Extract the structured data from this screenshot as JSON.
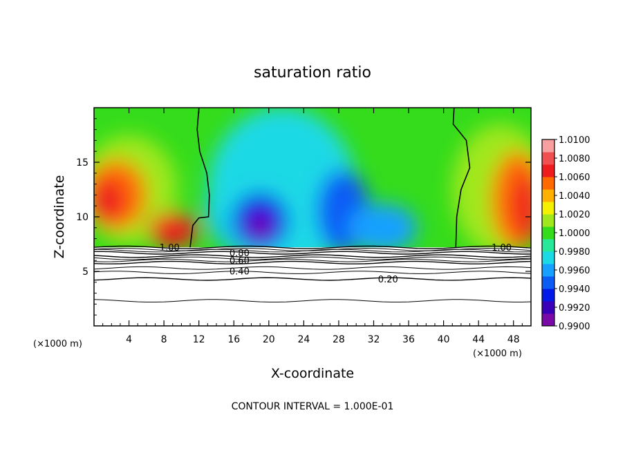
{
  "chart_data": {
    "type": "heatmap",
    "title": "saturation ratio",
    "xlabel": "X-coordinate",
    "ylabel": "Z-coordinate",
    "x_unit_label": "(×1000 m)",
    "y_unit_label": "(×1000 m)",
    "xlim": [
      0,
      50
    ],
    "ylim": [
      0,
      20
    ],
    "x_ticks": [
      4,
      8,
      12,
      16,
      20,
      24,
      28,
      32,
      36,
      40,
      44,
      48
    ],
    "y_ticks": [
      5,
      10,
      15
    ],
    "footer_note": "CONTOUR INTERVAL = 1.000E-01",
    "colorbar": {
      "min": 0.99,
      "max": 1.01,
      "labels": [
        "1.0100",
        "1.0080",
        "1.0060",
        "1.0040",
        "1.0020",
        "1.0000",
        "0.9980",
        "0.9960",
        "0.9940",
        "0.9920",
        "0.9900"
      ],
      "colors": [
        "#7a0aa8",
        "#3a00b8",
        "#0018e8",
        "#0a5cf5",
        "#16a0ff",
        "#1cd9e6",
        "#28e89a",
        "#35dc1c",
        "#a0e81c",
        "#f4f000",
        "#ffb000",
        "#ff6a00",
        "#ee1c1c",
        "#f05050",
        "#f8a0a0"
      ]
    },
    "contours": [
      {
        "label": "1.00",
        "z": 7.2
      },
      {
        "label": "0.80",
        "z": 6.7
      },
      {
        "label": "0.60",
        "z": 6.4
      },
      {
        "label": "0.40",
        "z": 5.8
      },
      {
        "label": "0.20",
        "z": 4.3
      }
    ],
    "contour_label_x": [
      7.5,
      15.5,
      15.5,
      15.5,
      32.5
    ],
    "extra_contour_label": {
      "label": "1.00",
      "x": 45.5,
      "z": 7.2
    },
    "boundary_lines": [
      {
        "name": "left",
        "points": [
          [
            12.0,
            20.0
          ],
          [
            11.8,
            18
          ],
          [
            12.1,
            16
          ],
          [
            12.9,
            14
          ],
          [
            13.2,
            12
          ],
          [
            13.1,
            10
          ],
          [
            12.0,
            9.9
          ],
          [
            11.3,
            9.2
          ],
          [
            11.0,
            7.2
          ]
        ]
      },
      {
        "name": "right",
        "points": [
          [
            41.2,
            20.0
          ],
          [
            41.1,
            18.5
          ],
          [
            42.6,
            17.0
          ],
          [
            43.0,
            14.5
          ],
          [
            42.0,
            12.5
          ],
          [
            41.5,
            10
          ],
          [
            41.4,
            7.2
          ]
        ]
      }
    ],
    "fields": {
      "background": "#35dc1c",
      "blobs": [
        {
          "x": 19.5,
          "z": 10.8,
          "rx": 6.8,
          "rz": 4.8,
          "color": "#16a0ff"
        },
        {
          "x": 21.5,
          "z": 12.5,
          "rx": 8.5,
          "rz": 7.5,
          "color": "#1cd9e6"
        },
        {
          "x": 19.0,
          "z": 9.6,
          "rx": 3.2,
          "rz": 2.6,
          "color": "#0018e8"
        },
        {
          "x": 19.0,
          "z": 9.1,
          "rx": 1.3,
          "rz": 1.2,
          "color": "#7a0aa8"
        },
        {
          "x": 28.5,
          "z": 10.5,
          "rx": 3.0,
          "rz": 3.8,
          "color": "#0a5cf5"
        },
        {
          "x": 33.0,
          "z": 9.0,
          "rx": 4.0,
          "rz": 2.2,
          "color": "#16a0ff"
        },
        {
          "x": 4.0,
          "z": 12.5,
          "rx": 5.5,
          "rz": 5.0,
          "color": "#a0e81c"
        },
        {
          "x": 2.5,
          "z": 12.0,
          "rx": 3.5,
          "rz": 3.2,
          "color": "#ff6a00"
        },
        {
          "x": 1.5,
          "z": 11.5,
          "rx": 2.0,
          "rz": 2.0,
          "color": "#ee1c1c"
        },
        {
          "x": 9.0,
          "z": 8.8,
          "rx": 2.8,
          "rz": 1.6,
          "color": "#ee1c1c"
        },
        {
          "x": 46.5,
          "z": 12.5,
          "rx": 5.5,
          "rz": 6.0,
          "color": "#a0e81c"
        },
        {
          "x": 48.5,
          "z": 11.5,
          "rx": 3.0,
          "rz": 4.5,
          "color": "#ff6a00"
        },
        {
          "x": 49.5,
          "z": 11.0,
          "rx": 1.6,
          "rz": 3.0,
          "color": "#ee1c1c"
        }
      ]
    }
  }
}
